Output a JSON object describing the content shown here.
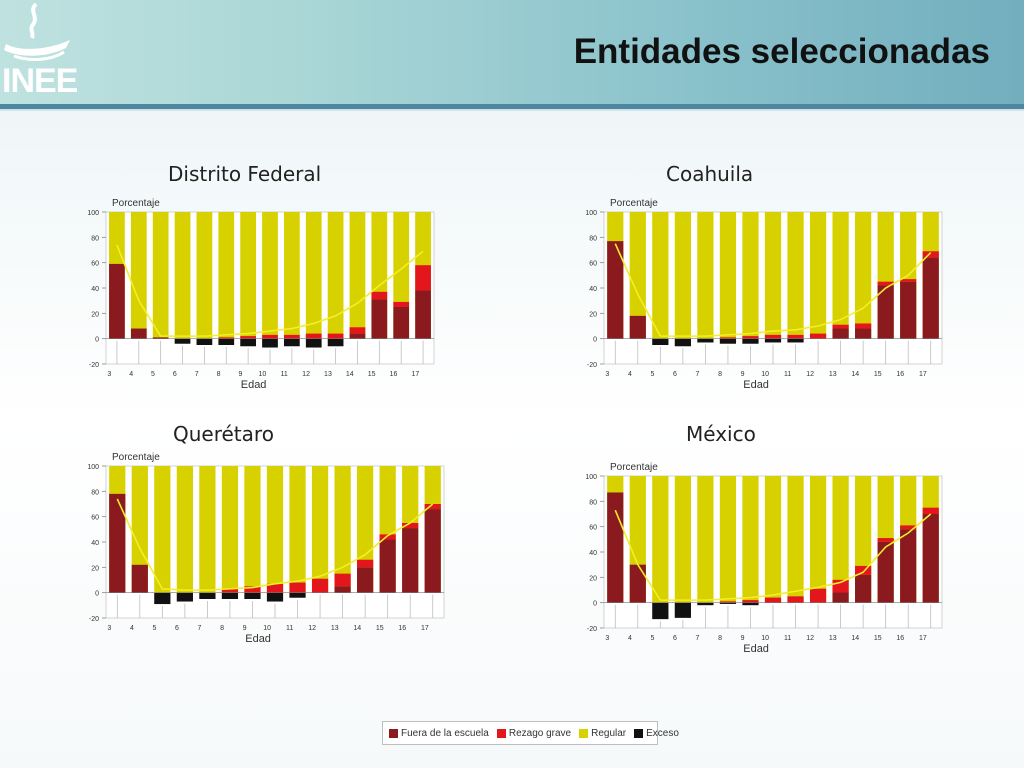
{
  "slide": {
    "title": "Entidades seleccionadas",
    "logo_text": "INEE"
  },
  "colors": {
    "fuera": "#8b1a1f",
    "rezago": "#e3161c",
    "regular": "#d8d100",
    "exceso": "#111111",
    "trend_line": "#f2ee2a"
  },
  "legend": [
    {
      "key": "fuera",
      "label": "Fuera de la escuela"
    },
    {
      "key": "rezago",
      "label": "Rezago grave"
    },
    {
      "key": "regular",
      "label": "Regular"
    },
    {
      "key": "exceso",
      "label": "Exceso"
    }
  ],
  "chart_data": [
    {
      "type": "bar",
      "title": "Distrito Federal",
      "ylabel": "Porcentaje",
      "xlabel": "Edad",
      "ylim": [
        -20,
        100
      ],
      "yticks": [
        "100",
        "80",
        "60",
        "40",
        "20",
        "0",
        "-20"
      ],
      "categories": [
        "3",
        "4",
        "5",
        "6",
        "7",
        "8",
        "9",
        "10",
        "11",
        "12",
        "13",
        "14",
        "15",
        "16",
        "17"
      ],
      "series": [
        {
          "name": "Fuera de la escuela",
          "values": [
            59,
            8,
            1,
            0,
            0,
            0,
            0,
            0,
            0,
            0,
            0,
            4,
            31,
            25,
            38
          ]
        },
        {
          "name": "Rezago grave",
          "values": [
            0,
            0,
            0,
            0,
            0,
            1,
            2,
            3,
            3,
            4,
            4,
            5,
            6,
            4,
            20
          ]
        },
        {
          "name": "Exceso",
          "values": [
            0,
            0,
            0,
            -4,
            -5,
            -5,
            -6,
            -7,
            -6,
            -7,
            -6,
            0,
            0,
            0,
            0
          ]
        }
      ],
      "line": [
        74,
        30,
        2,
        2,
        2,
        3,
        4,
        6,
        8,
        12,
        18,
        28,
        42,
        55,
        69
      ]
    },
    {
      "type": "bar",
      "title": "Coahuila",
      "ylabel": "Porcentaje",
      "xlabel": "Edad",
      "ylim": [
        -20,
        100
      ],
      "yticks": [
        "100",
        "80",
        "60",
        "40",
        "20",
        "0",
        "-20"
      ],
      "categories": [
        "3",
        "4",
        "5",
        "6",
        "7",
        "8",
        "9",
        "10",
        "11",
        "12",
        "13",
        "14",
        "15",
        "16",
        "17"
      ],
      "series": [
        {
          "name": "Fuera de la escuela",
          "values": [
            77,
            18,
            0,
            0,
            0,
            0,
            0,
            0,
            0,
            0,
            8,
            8,
            42,
            45,
            64
          ]
        },
        {
          "name": "Rezago grave",
          "values": [
            0,
            0,
            0,
            0,
            0,
            1,
            2,
            3,
            3,
            4,
            3,
            4,
            3,
            2,
            5
          ]
        },
        {
          "name": "Exceso",
          "values": [
            0,
            0,
            -5,
            -6,
            -3,
            -4,
            -4,
            -3,
            -3,
            0,
            0,
            0,
            0,
            0,
            0
          ]
        }
      ],
      "line": [
        75,
        35,
        2,
        2,
        2,
        3,
        4,
        6,
        7,
        10,
        15,
        24,
        40,
        50,
        68
      ]
    },
    {
      "type": "bar",
      "title": "Querétaro",
      "ylabel": "Porcentaje",
      "xlabel": "Edad",
      "ylim": [
        -20,
        100
      ],
      "yticks": [
        "100",
        "80",
        "60",
        "40",
        "20",
        "0",
        "-20"
      ],
      "categories": [
        "3",
        "4",
        "5",
        "6",
        "7",
        "8",
        "9",
        "10",
        "11",
        "12",
        "13",
        "14",
        "15",
        "16",
        "17"
      ],
      "series": [
        {
          "name": "Fuera de la escuela",
          "values": [
            78,
            22,
            0,
            0,
            0,
            0,
            0,
            0,
            0,
            0,
            5,
            20,
            42,
            51,
            66
          ]
        },
        {
          "name": "Rezago grave",
          "values": [
            0,
            0,
            0,
            0,
            0,
            3,
            5,
            7,
            8,
            11,
            10,
            6,
            4,
            4,
            4
          ]
        },
        {
          "name": "Exceso",
          "values": [
            0,
            0,
            -9,
            -7,
            -5,
            -5,
            -5,
            -7,
            -4,
            0,
            0,
            0,
            0,
            0,
            0
          ]
        }
      ],
      "line": [
        74,
        35,
        3,
        2,
        2,
        3,
        4,
        7,
        9,
        13,
        20,
        30,
        45,
        55,
        70
      ]
    },
    {
      "type": "bar",
      "title": "México",
      "ylabel": "Porcentaje",
      "xlabel": "Edad",
      "ylim": [
        -20,
        100
      ],
      "yticks": [
        "100",
        "80",
        "60",
        "40",
        "20",
        "0",
        "-20"
      ],
      "categories": [
        "3",
        "4",
        "5",
        "6",
        "7",
        "8",
        "9",
        "10",
        "11",
        "12",
        "13",
        "14",
        "15",
        "16",
        "17"
      ],
      "series": [
        {
          "name": "Fuera de la escuela",
          "values": [
            87,
            30,
            0,
            0,
            0,
            0,
            0,
            0,
            0,
            0,
            8,
            22,
            48,
            58,
            70
          ]
        },
        {
          "name": "Rezago grave",
          "values": [
            0,
            0,
            0,
            0,
            0,
            1,
            2,
            4,
            5,
            11,
            10,
            7,
            3,
            3,
            5
          ]
        },
        {
          "name": "Exceso",
          "values": [
            0,
            0,
            -13,
            -12,
            -2,
            -1,
            -2,
            0,
            0,
            0,
            0,
            0,
            0,
            0,
            0
          ]
        }
      ],
      "line": [
        73,
        30,
        2,
        2,
        2,
        3,
        4,
        6,
        9,
        12,
        16,
        24,
        44,
        55,
        70
      ]
    }
  ]
}
